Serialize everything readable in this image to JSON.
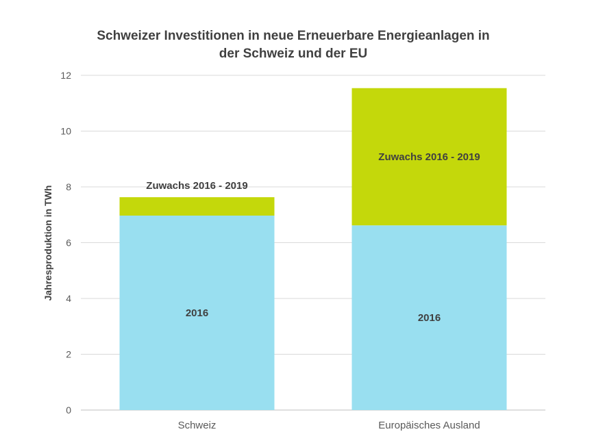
{
  "chart_data": {
    "type": "bar",
    "stacked": true,
    "title": [
      "Schweizer Investitionen in neue Erneuerbare Energieanlagen in",
      "der Schweiz und der EU"
    ],
    "xlabel": "",
    "ylabel": "Jahresproduktion in TWh",
    "categories": [
      "Schweiz",
      "Europäisches Ausland"
    ],
    "ylim": [
      0,
      12
    ],
    "yticks": [
      0,
      2,
      4,
      6,
      8,
      10,
      12
    ],
    "grid": true,
    "legend": "none",
    "series": [
      {
        "values": [
          6.97,
          6.62
        ],
        "color": "#99dff0",
        "labels": [
          "2016",
          "2016"
        ]
      },
      {
        "values": [
          0.66,
          4.92
        ],
        "color": "#c4d80b",
        "labels": [
          "Zuwachs 2016 - 2019",
          "Zuwachs 2016 - 2019"
        ]
      }
    ]
  }
}
